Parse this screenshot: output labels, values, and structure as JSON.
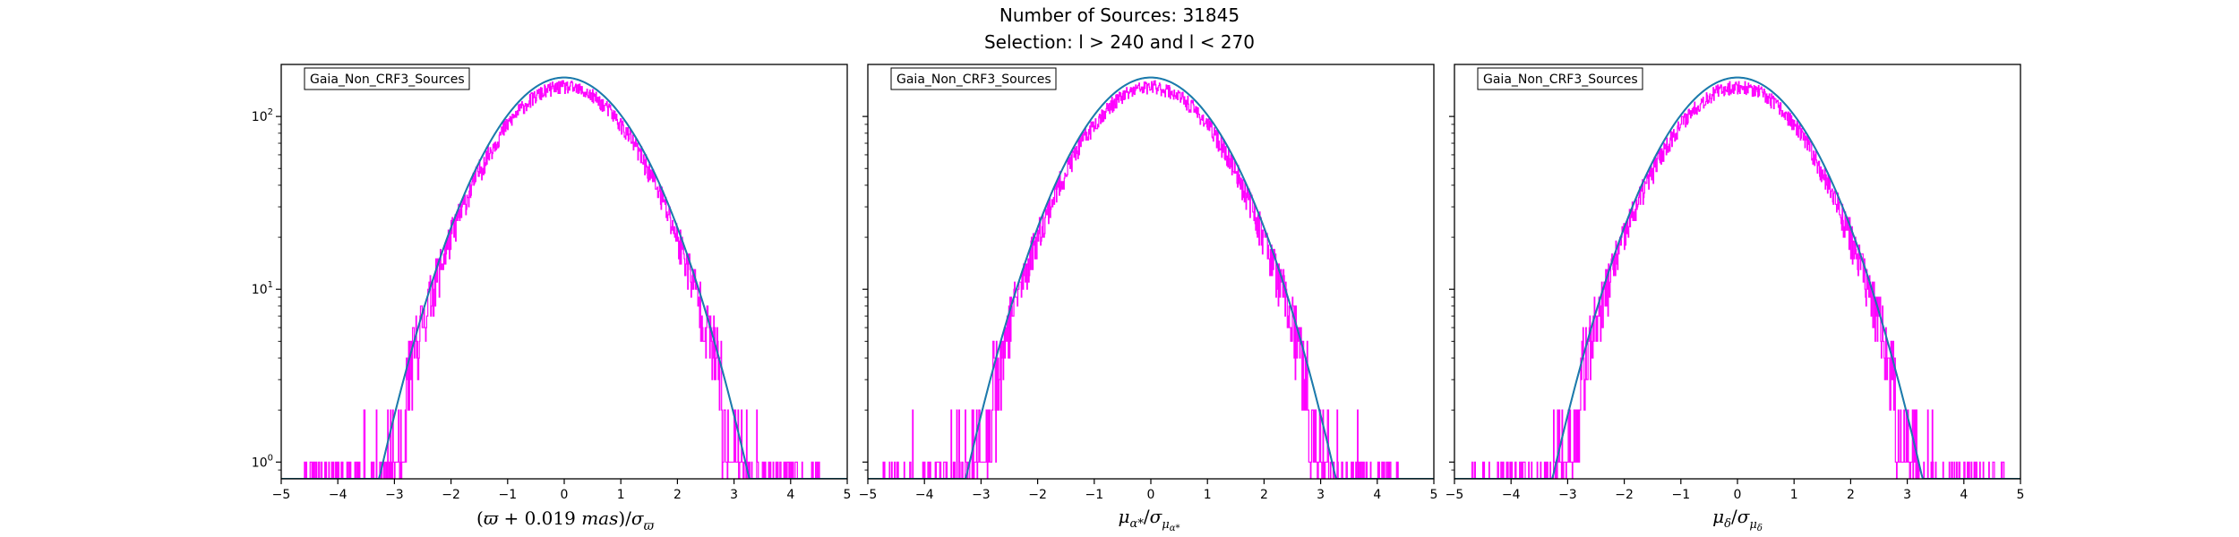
{
  "figure": {
    "title_line1": "Number of Sources: 31845",
    "title_line2": "Selection: l > 240 and l < 270"
  },
  "colors": {
    "histogram": "#ff00ff",
    "fit": "#1f77b4",
    "fit_alt": "#008080"
  },
  "chart_data": [
    {
      "type": "histogram",
      "legend": "Gaia_Non_CRF3_Sources",
      "legend_position": "upper-left",
      "xlabel": "(ϖ + 0.019 mas)/σ_ϖ",
      "xlim": [
        -5,
        5
      ],
      "ylim": [
        0.8,
        200
      ],
      "yscale": "log",
      "xticks": [
        "−5",
        "−4",
        "−3",
        "−2",
        "−1",
        "0",
        "1",
        "2",
        "3",
        "4",
        "5"
      ],
      "yticks": [
        {
          "base": "10",
          "exp": "0"
        },
        {
          "base": "10",
          "exp": "1"
        },
        {
          "base": "10",
          "exp": "2"
        }
      ],
      "series": [
        {
          "kind": "histogram",
          "range": [
            -4.6,
            4.5
          ],
          "seed": 11
        },
        {
          "kind": "gaussian_fit",
          "amplitude": 168,
          "mean": 0.0,
          "sigma": 1.0
        }
      ]
    },
    {
      "type": "histogram",
      "legend": "Gaia_Non_CRF3_Sources",
      "legend_position": "upper-left",
      "xlabel": "μ_α*/σ_μα*",
      "xlim": [
        -5,
        5
      ],
      "ylim": [
        0.8,
        200
      ],
      "yscale": "log",
      "xticks": [
        "−5",
        "−4",
        "−3",
        "−2",
        "−1",
        "0",
        "1",
        "2",
        "3",
        "4",
        "5"
      ],
      "yticks": [
        {
          "base": "10",
          "exp": "0"
        },
        {
          "base": "10",
          "exp": "1"
        },
        {
          "base": "10",
          "exp": "2"
        }
      ],
      "series": [
        {
          "kind": "histogram",
          "range": [
            -4.8,
            4.4
          ],
          "seed": 23
        },
        {
          "kind": "gaussian_fit",
          "amplitude": 168,
          "mean": 0.0,
          "sigma": 1.0
        }
      ]
    },
    {
      "type": "histogram",
      "legend": "Gaia_Non_CRF3_Sources",
      "legend_position": "upper-left",
      "xlabel": "μ_δ/σ_μδ",
      "xlim": [
        -5,
        5
      ],
      "ylim": [
        0.8,
        200
      ],
      "yscale": "log",
      "xticks": [
        "−5",
        "−4",
        "−3",
        "−2",
        "−1",
        "0",
        "1",
        "2",
        "3",
        "4",
        "5"
      ],
      "yticks": [
        {
          "base": "10",
          "exp": "0"
        },
        {
          "base": "10",
          "exp": "1"
        },
        {
          "base": "10",
          "exp": "2"
        }
      ],
      "series": [
        {
          "kind": "histogram",
          "range": [
            -4.7,
            4.7
          ],
          "seed": 37
        },
        {
          "kind": "gaussian_fit",
          "amplitude": 168,
          "mean": 0.0,
          "sigma": 1.0
        }
      ]
    }
  ]
}
